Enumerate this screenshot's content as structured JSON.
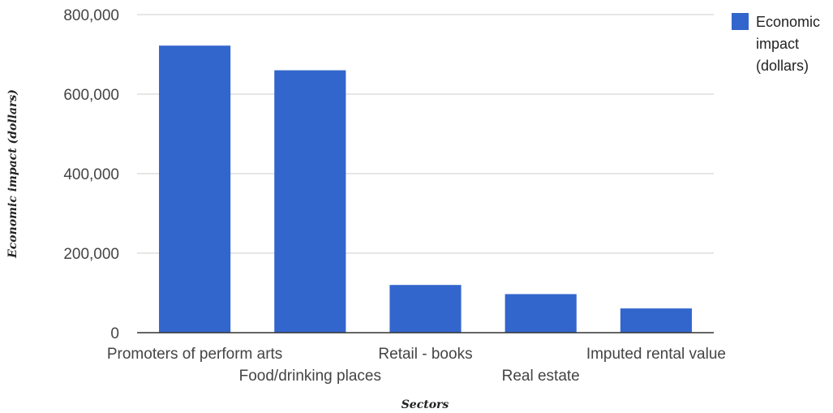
{
  "chart_data": {
    "type": "bar",
    "title": "",
    "xlabel": "Sectors",
    "ylabel": "Economic impact (dollars)",
    "categories": [
      "Promoters of perform arts",
      "Food/drinking places",
      "Retail - books",
      "Real estate",
      "Imputed rental value"
    ],
    "series": [
      {
        "name": "Economic impact (dollars)",
        "legend_lines": [
          "Economic",
          "impact",
          "(dollars)"
        ],
        "values": [
          722000,
          660000,
          120000,
          97000,
          61000
        ],
        "color": "#3366cc"
      }
    ],
    "ylim": [
      0,
      800000
    ],
    "yticks": [
      0,
      200000,
      400000,
      600000,
      800000
    ],
    "ytick_labels": [
      "0",
      "200,000",
      "400,000",
      "600,000",
      "800,000"
    ],
    "grid": true,
    "legend_position": "top-right"
  }
}
